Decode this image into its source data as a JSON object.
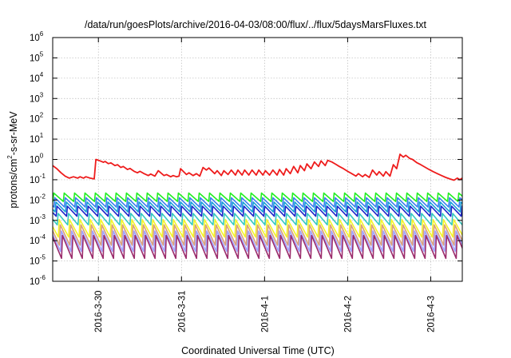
{
  "chart_data": {
    "type": "line",
    "title": "/data/run/goesPlots/archive/2016-04-03/08:00/flux/../flux/5daysMarsFluxes.txt",
    "xlabel": "Coordinated Universal Time (UTC)",
    "ylabel": "protons/cm²-s-sr-MeV",
    "ylabel_parts": [
      "protons/cm",
      "2",
      "-s-sr-MeV"
    ],
    "yscale": "log",
    "ylim_exp": [
      -6,
      6
    ],
    "ytick_base": "10",
    "ytick_exponents": [
      "-6",
      "-5",
      "-4",
      "-3",
      "-2",
      "-1",
      "0",
      "1",
      "2",
      "3",
      "4",
      "5",
      "6"
    ],
    "xlim_days": [
      -1.55,
      3.38
    ],
    "xtick_labels": [
      "2016-3-30",
      "2016-3-31",
      "2016-4-1",
      "2016-4-2",
      "2016-4-3"
    ],
    "xtick_days": [
      -1,
      0,
      1,
      2,
      3
    ],
    "grid": true,
    "legend": "none",
    "sawtooth_period_days": 0.125,
    "series": [
      {
        "color": "#ee1c1c",
        "points": [
          [
            -1.55,
            0.5
          ],
          [
            -1.5,
            0.35
          ],
          [
            -1.45,
            0.22
          ],
          [
            -1.4,
            0.15
          ],
          [
            -1.35,
            0.12
          ],
          [
            -1.3,
            0.14
          ],
          [
            -1.25,
            0.12
          ],
          [
            -1.22,
            0.14
          ],
          [
            -1.18,
            0.12
          ],
          [
            -1.15,
            0.14
          ],
          [
            -1.1,
            0.12
          ],
          [
            -1.05,
            0.11
          ],
          [
            -1.03,
            1.0
          ],
          [
            -0.98,
            0.85
          ],
          [
            -0.94,
            0.72
          ],
          [
            -0.92,
            0.8
          ],
          [
            -0.88,
            0.62
          ],
          [
            -0.85,
            0.68
          ],
          [
            -0.8,
            0.5
          ],
          [
            -0.77,
            0.55
          ],
          [
            -0.73,
            0.4
          ],
          [
            -0.7,
            0.45
          ],
          [
            -0.65,
            0.32
          ],
          [
            -0.62,
            0.36
          ],
          [
            -0.57,
            0.26
          ],
          [
            -0.53,
            0.22
          ],
          [
            -0.5,
            0.26
          ],
          [
            -0.45,
            0.2
          ],
          [
            -0.4,
            0.16
          ],
          [
            -0.37,
            0.19
          ],
          [
            -0.32,
            0.15
          ],
          [
            -0.28,
            0.28
          ],
          [
            -0.21,
            0.16
          ],
          [
            -0.18,
            0.18
          ],
          [
            -0.13,
            0.14
          ],
          [
            -0.1,
            0.16
          ],
          [
            -0.06,
            0.14
          ],
          [
            -0.03,
            0.15
          ],
          [
            -0.01,
            0.35
          ],
          [
            0.06,
            0.18
          ],
          [
            0.09,
            0.22
          ],
          [
            0.14,
            0.16
          ],
          [
            0.18,
            0.2
          ],
          [
            0.22,
            0.15
          ],
          [
            0.26,
            0.4
          ],
          [
            0.3,
            0.3
          ],
          [
            0.33,
            0.38
          ],
          [
            0.4,
            0.2
          ],
          [
            0.43,
            0.28
          ],
          [
            0.48,
            0.16
          ],
          [
            0.51,
            0.28
          ],
          [
            0.56,
            0.18
          ],
          [
            0.6,
            0.3
          ],
          [
            0.65,
            0.17
          ],
          [
            0.68,
            0.3
          ],
          [
            0.73,
            0.17
          ],
          [
            0.76,
            0.3
          ],
          [
            0.81,
            0.17
          ],
          [
            0.85,
            0.3
          ],
          [
            0.9,
            0.17
          ],
          [
            0.93,
            0.3
          ],
          [
            0.98,
            0.17
          ],
          [
            1.01,
            0.28
          ],
          [
            1.06,
            0.17
          ],
          [
            1.1,
            0.3
          ],
          [
            1.15,
            0.17
          ],
          [
            1.18,
            0.32
          ],
          [
            1.23,
            0.17
          ],
          [
            1.26,
            0.35
          ],
          [
            1.31,
            0.2
          ],
          [
            1.35,
            0.45
          ],
          [
            1.4,
            0.22
          ],
          [
            1.43,
            0.5
          ],
          [
            1.48,
            0.28
          ],
          [
            1.51,
            0.6
          ],
          [
            1.56,
            0.35
          ],
          [
            1.6,
            0.75
          ],
          [
            1.65,
            0.45
          ],
          [
            1.68,
            0.85
          ],
          [
            1.73,
            0.5
          ],
          [
            1.76,
            0.9
          ],
          [
            1.81,
            0.75
          ],
          [
            1.85,
            0.6
          ],
          [
            1.9,
            0.45
          ],
          [
            1.95,
            0.35
          ],
          [
            2.0,
            0.26
          ],
          [
            2.05,
            0.2
          ],
          [
            2.1,
            0.15
          ],
          [
            2.13,
            0.2
          ],
          [
            2.18,
            0.14
          ],
          [
            2.21,
            0.18
          ],
          [
            2.26,
            0.13
          ],
          [
            2.3,
            0.3
          ],
          [
            2.35,
            0.17
          ],
          [
            2.38,
            0.25
          ],
          [
            2.43,
            0.15
          ],
          [
            2.46,
            0.25
          ],
          [
            2.51,
            0.15
          ],
          [
            2.55,
            0.55
          ],
          [
            2.59,
            0.35
          ],
          [
            2.63,
            1.8
          ],
          [
            2.67,
            1.3
          ],
          [
            2.7,
            1.6
          ],
          [
            2.75,
            1.1
          ],
          [
            2.78,
            1.0
          ],
          [
            2.83,
            0.7
          ],
          [
            2.88,
            0.55
          ],
          [
            2.93,
            0.42
          ],
          [
            2.98,
            0.32
          ],
          [
            3.03,
            0.25
          ],
          [
            3.08,
            0.2
          ],
          [
            3.13,
            0.16
          ],
          [
            3.18,
            0.13
          ],
          [
            3.23,
            0.11
          ],
          [
            3.28,
            0.095
          ],
          [
            3.32,
            0.12
          ],
          [
            3.35,
            0.1
          ],
          [
            3.38,
            0.12
          ]
        ]
      },
      {
        "color": "#22ee22",
        "peak": 0.022,
        "trough": 0.0085
      },
      {
        "color": "#3a7df0",
        "peak": 0.013,
        "trough": 0.0045
      },
      {
        "color": "#1a9fd8",
        "peak": 0.008,
        "trough": 0.0026
      },
      {
        "color": "#1b25c9",
        "peak": 0.005,
        "trough": 0.0016
      },
      {
        "color": "#36c9c0",
        "peak": 0.0022,
        "trough": 0.0006
      },
      {
        "color": "#f3f32a",
        "peak": 0.0011,
        "trough": 0.00015
      },
      {
        "color": "#d9a07a",
        "peak": 0.0006,
        "trough": 6e-05
      },
      {
        "color": "#a3a3ff",
        "peak": 0.0003,
        "trough": 3e-05
      },
      {
        "color": "#9b2c6c",
        "peak": 0.00018,
        "trough": 1.35e-05
      }
    ]
  }
}
